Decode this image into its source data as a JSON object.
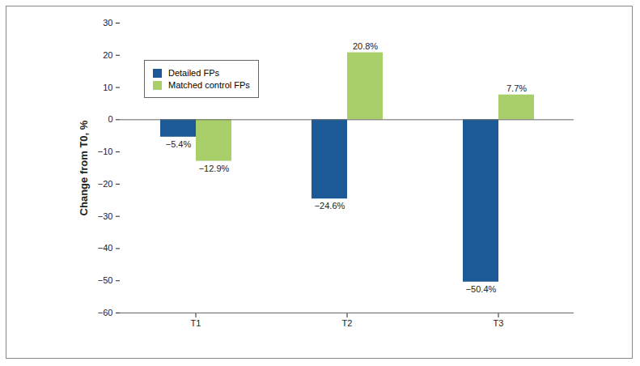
{
  "chart_data": {
    "type": "bar",
    "y_label": "Change from T0, %",
    "categories": [
      "T1",
      "T2",
      "T3"
    ],
    "series": [
      {
        "name": "Detailed FPs",
        "color": "#1b5a96",
        "values": [
          -5.4,
          -24.6,
          -50.4
        ],
        "value_labels": [
          "−5.4%",
          "−24.6%",
          "−50.4%"
        ]
      },
      {
        "name": "Matched control FPs",
        "color": "#a9cf6b",
        "values": [
          -12.9,
          20.8,
          7.7
        ],
        "value_labels": [
          "−12.9%",
          "20.8%",
          "7.7%"
        ]
      }
    ],
    "ylim": [
      -60,
      30
    ],
    "yticks": [
      -60,
      -50,
      -40,
      -30,
      -20,
      -10,
      0,
      10,
      20,
      30
    ],
    "data_labels": true,
    "legend": "upper left",
    "grid": false
  }
}
